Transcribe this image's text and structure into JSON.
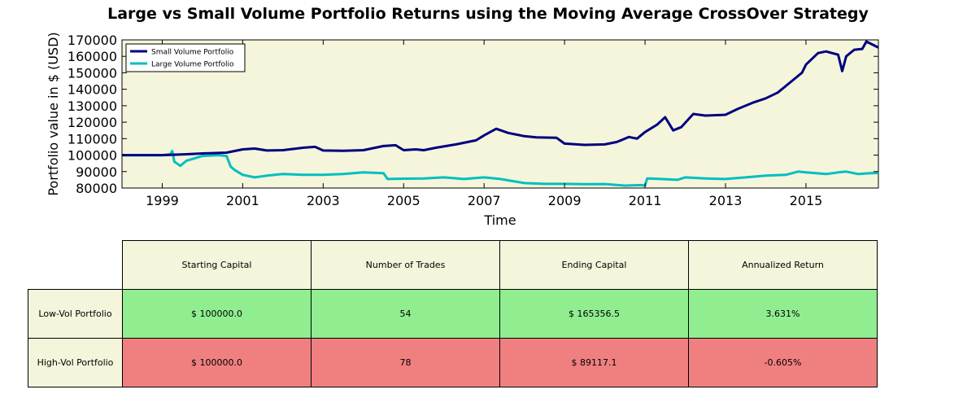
{
  "chart_data": {
    "type": "line",
    "title": "Large vs Small Volume Portfolio Returns using the Moving Average CrossOver Strategy",
    "xlabel": "Time",
    "ylabel": "Portfolio value in $ (USD)",
    "xlim": [
      1998.0,
      2016.8
    ],
    "ylim": [
      80000,
      170000
    ],
    "x_ticks": [
      "1999",
      "2001",
      "2003",
      "2005",
      "2007",
      "2009",
      "2011",
      "2013",
      "2015"
    ],
    "y_ticks": [
      "80000",
      "90000",
      "100000",
      "110000",
      "120000",
      "130000",
      "140000",
      "150000",
      "160000",
      "170000"
    ],
    "grid": false,
    "legend_position": "top-left",
    "plot_background": "#f5f5dc",
    "series": [
      {
        "name": "Small Volume Portfolio",
        "color": "#000080",
        "points": [
          [
            1998.0,
            100000
          ],
          [
            1999.0,
            100000
          ],
          [
            1999.6,
            100500
          ],
          [
            2000.0,
            101000
          ],
          [
            2000.6,
            101500
          ],
          [
            2001.0,
            103500
          ],
          [
            2001.3,
            104000
          ],
          [
            2001.6,
            102800
          ],
          [
            2002.0,
            103000
          ],
          [
            2002.5,
            104500
          ],
          [
            2002.8,
            105000
          ],
          [
            2003.0,
            102800
          ],
          [
            2003.5,
            102600
          ],
          [
            2004.0,
            103000
          ],
          [
            2004.5,
            105500
          ],
          [
            2004.8,
            106000
          ],
          [
            2005.0,
            103000
          ],
          [
            2005.3,
            103500
          ],
          [
            2005.5,
            103000
          ],
          [
            2005.8,
            104500
          ],
          [
            2006.3,
            106500
          ],
          [
            2006.8,
            109000
          ],
          [
            2007.0,
            112000
          ],
          [
            2007.3,
            116000
          ],
          [
            2007.6,
            113500
          ],
          [
            2008.0,
            111500
          ],
          [
            2008.3,
            110800
          ],
          [
            2008.8,
            110500
          ],
          [
            2009.0,
            107000
          ],
          [
            2009.5,
            106200
          ],
          [
            2010.0,
            106500
          ],
          [
            2010.3,
            108000
          ],
          [
            2010.6,
            111000
          ],
          [
            2010.8,
            110000
          ],
          [
            2011.0,
            114000
          ],
          [
            2011.3,
            118500
          ],
          [
            2011.5,
            123000
          ],
          [
            2011.7,
            115000
          ],
          [
            2011.9,
            117000
          ],
          [
            2012.2,
            125000
          ],
          [
            2012.5,
            124000
          ],
          [
            2013.0,
            124500
          ],
          [
            2013.3,
            128000
          ],
          [
            2013.7,
            132000
          ],
          [
            2014.0,
            134500
          ],
          [
            2014.3,
            138000
          ],
          [
            2014.7,
            146000
          ],
          [
            2014.9,
            150000
          ],
          [
            2015.0,
            155000
          ],
          [
            2015.3,
            162000
          ],
          [
            2015.5,
            163000
          ],
          [
            2015.8,
            161000
          ],
          [
            2015.9,
            151000
          ],
          [
            2016.0,
            160000
          ],
          [
            2016.2,
            164000
          ],
          [
            2016.4,
            164500
          ],
          [
            2016.5,
            169000
          ],
          [
            2016.8,
            165356.5
          ]
        ]
      },
      {
        "name": "Large Volume Portfolio",
        "color": "#00bfbf",
        "points": [
          [
            1998.0,
            100000
          ],
          [
            1999.0,
            100000
          ],
          [
            1999.2,
            100500
          ],
          [
            1999.25,
            102500
          ],
          [
            1999.3,
            96000
          ],
          [
            1999.45,
            93500
          ],
          [
            1999.6,
            96500
          ],
          [
            1999.8,
            98000
          ],
          [
            2000.0,
            99500
          ],
          [
            2000.4,
            100000
          ],
          [
            2000.6,
            99500
          ],
          [
            2000.7,
            93000
          ],
          [
            2000.8,
            91000
          ],
          [
            2001.0,
            88000
          ],
          [
            2001.3,
            86500
          ],
          [
            2001.6,
            87500
          ],
          [
            2002.0,
            88500
          ],
          [
            2002.5,
            88000
          ],
          [
            2003.0,
            88000
          ],
          [
            2003.5,
            88500
          ],
          [
            2004.0,
            89500
          ],
          [
            2004.5,
            89000
          ],
          [
            2004.6,
            85500
          ],
          [
            2005.0,
            85700
          ],
          [
            2005.5,
            85800
          ],
          [
            2006.0,
            86500
          ],
          [
            2006.5,
            85500
          ],
          [
            2007.0,
            86500
          ],
          [
            2007.4,
            85500
          ],
          [
            2008.0,
            83000
          ],
          [
            2008.5,
            82500
          ],
          [
            2009.0,
            82500
          ],
          [
            2009.5,
            82300
          ],
          [
            2010.0,
            82400
          ],
          [
            2010.5,
            81500
          ],
          [
            2010.9,
            81800
          ],
          [
            2011.0,
            81500
          ],
          [
            2011.05,
            85800
          ],
          [
            2011.4,
            85500
          ],
          [
            2011.8,
            85000
          ],
          [
            2012.0,
            86500
          ],
          [
            2012.5,
            85800
          ],
          [
            2013.0,
            85500
          ],
          [
            2013.5,
            86500
          ],
          [
            2014.0,
            87500
          ],
          [
            2014.5,
            88000
          ],
          [
            2014.8,
            90000
          ],
          [
            2015.0,
            89500
          ],
          [
            2015.5,
            88500
          ],
          [
            2015.8,
            89500
          ],
          [
            2016.0,
            90000
          ],
          [
            2016.3,
            88500
          ],
          [
            2016.6,
            89000
          ],
          [
            2016.8,
            89117.1
          ]
        ]
      }
    ]
  },
  "table": {
    "headers": [
      "Starting Capital",
      "Number of Trades",
      "Ending Capital",
      "Annualized Return"
    ],
    "rows": [
      {
        "label": "Low-Vol Portfolio",
        "cells": [
          "$ 100000.0",
          "54",
          "$ 165356.5",
          "3.631%"
        ],
        "color": "#90ee90"
      },
      {
        "label": "High-Vol Portfolio",
        "cells": [
          "$ 100000.0",
          "78",
          "$ 89117.1",
          "-0.605%"
        ],
        "color": "#f08080"
      }
    ],
    "header_color": "#f5f5dc"
  }
}
